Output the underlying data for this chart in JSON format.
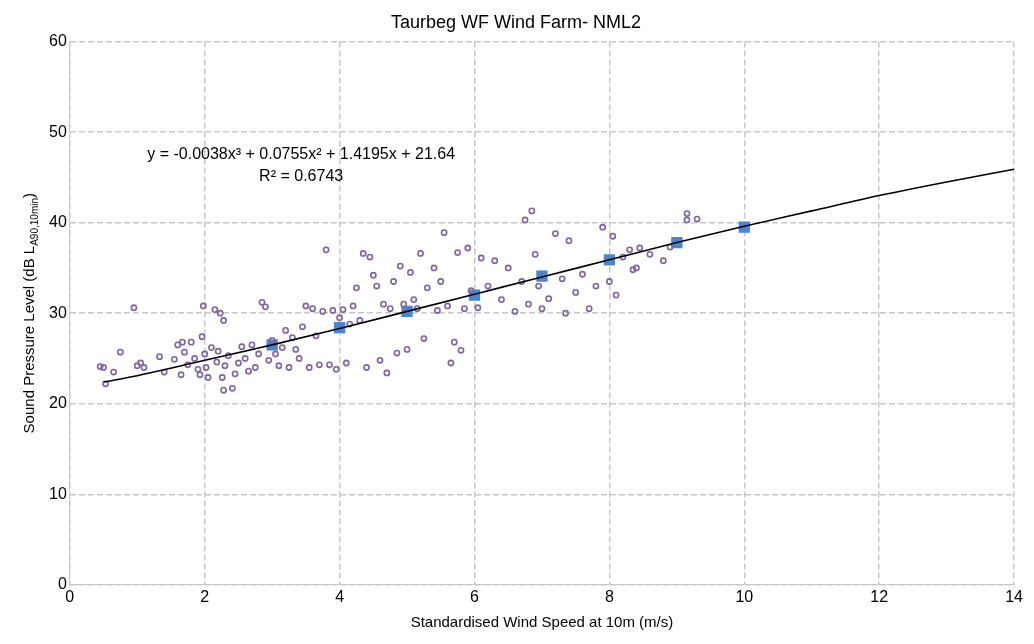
{
  "chart_data": {
    "type": "scatter",
    "title": "Taurbeg WF Wind Farm- NML2",
    "xlabel": "Standardised Wind Speed at 10m (m/s)",
    "ylabel": "Sound Pressure Level (dB L$_{A90,10min}$)",
    "xlim": [
      0,
      14
    ],
    "xticks": [
      0,
      2,
      4,
      6,
      8,
      10,
      12,
      14
    ],
    "ylim": [
      0,
      60
    ],
    "yticks": [
      0,
      10,
      20,
      30,
      40,
      50,
      60
    ],
    "grid": true,
    "legend": false,
    "annotations": [
      "y = -0.0038x³ + 0.0755x² + 1.4195x + 21.64",
      "R² = 0.6743"
    ],
    "series": [
      {
        "color": "#8064a2",
        "marker": "circle",
        "x": [
          0.45,
          0.5,
          0.53,
          0.65,
          0.75,
          0.95,
          1.0,
          1.05,
          1.1,
          1.33,
          1.4,
          1.55,
          1.6,
          1.65,
          1.67,
          1.7,
          1.75,
          1.8,
          1.85,
          1.9,
          1.93,
          1.96,
          1.98,
          2.0,
          2.02,
          2.05,
          2.1,
          2.15,
          2.18,
          2.2,
          2.23,
          2.26,
          2.28,
          2.28,
          2.3,
          2.35,
          2.41,
          2.45,
          2.5,
          2.55,
          2.6,
          2.65,
          2.7,
          2.75,
          2.8,
          2.85,
          2.9,
          2.95,
          3.0,
          3.05,
          3.1,
          3.15,
          3.2,
          3.25,
          3.3,
          3.35,
          3.4,
          3.45,
          3.5,
          3.55,
          3.6,
          3.65,
          3.7,
          3.75,
          3.8,
          3.85,
          3.9,
          3.95,
          4.0,
          4.05,
          4.1,
          4.15,
          4.2,
          4.25,
          4.3,
          4.35,
          4.4,
          4.45,
          4.5,
          4.55,
          4.6,
          4.65,
          4.7,
          4.75,
          4.8,
          4.85,
          4.9,
          4.95,
          5.0,
          5.05,
          5.1,
          5.15,
          5.2,
          5.25,
          5.3,
          5.4,
          5.45,
          5.5,
          5.55,
          5.6,
          5.65,
          5.7,
          5.75,
          5.8,
          5.85,
          5.9,
          5.95,
          6.05,
          6.1,
          6.2,
          6.3,
          6.4,
          6.5,
          6.6,
          6.7,
          6.75,
          6.8,
          6.85,
          6.9,
          6.95,
          7.0,
          7.1,
          7.2,
          7.3,
          7.35,
          7.4,
          7.5,
          7.6,
          7.7,
          7.8,
          7.9,
          8.0,
          8.05,
          8.1,
          8.2,
          8.3,
          8.35,
          8.4,
          8.45,
          8.6,
          8.8,
          8.9,
          9.15,
          9.15,
          9.3
        ],
        "values": [
          24.1,
          24.0,
          22.2,
          23.5,
          25.7,
          30.6,
          24.2,
          24.5,
          24.0,
          25.2,
          23.5,
          24.9,
          26.5,
          23.2,
          26.8,
          25.7,
          24.3,
          26.8,
          25.0,
          23.8,
          23.2,
          27.4,
          30.8,
          25.5,
          24.0,
          22.9,
          26.2,
          30.4,
          24.6,
          25.8,
          30.0,
          22.9,
          29.2,
          21.5,
          24.2,
          25.3,
          21.7,
          23.3,
          24.5,
          26.3,
          25.0,
          23.6,
          26.5,
          24.0,
          25.5,
          31.2,
          30.7,
          24.8,
          27.0,
          25.5,
          24.2,
          26.2,
          28.1,
          24.0,
          27.3,
          26.0,
          25.0,
          28.5,
          30.8,
          24.0,
          30.5,
          27.5,
          24.3,
          30.2,
          37.0,
          24.3,
          30.3,
          23.8,
          29.5,
          30.4,
          24.5,
          28.8,
          30.8,
          32.8,
          29.2,
          36.6,
          24.0,
          36.2,
          34.2,
          33.0,
          24.8,
          31.0,
          23.4,
          30.5,
          33.5,
          25.6,
          35.2,
          31.0,
          26.0,
          34.5,
          31.5,
          30.5,
          36.6,
          27.2,
          32.8,
          35.0,
          30.3,
          33.5,
          38.9,
          30.8,
          24.5,
          26.8,
          36.7,
          25.9,
          30.5,
          37.2,
          32.5,
          30.6,
          36.1,
          33.0,
          35.8,
          31.5,
          35.0,
          30.2,
          33.5,
          40.3,
          31.0,
          41.3,
          36.5,
          33.0,
          30.5,
          31.6,
          38.8,
          33.8,
          30.0,
          38.0,
          32.3,
          34.3,
          30.5,
          33.0,
          39.5,
          33.5,
          38.5,
          32.0,
          36.2,
          37.0,
          34.8,
          35.0,
          37.2,
          36.5,
          35.8,
          37.3,
          41.0,
          40.3,
          40.4
        ]
      },
      {
        "color": "#4a86d0",
        "marker": "square",
        "x": [
          3,
          4,
          5,
          6,
          7,
          8,
          9,
          10
        ],
        "values": [
          26.5,
          28.4,
          30.2,
          32.0,
          34.1,
          35.9,
          37.8,
          39.5
        ]
      },
      {
        "type": "line",
        "color": "#000000",
        "marker": "none",
        "line_style": "solid",
        "x": [
          0.5,
          1,
          2,
          3,
          4,
          5,
          6,
          7,
          8,
          9,
          10,
          11,
          12,
          13,
          14
        ],
        "values": [
          22.4,
          23.1,
          24.8,
          26.5,
          28.3,
          30.2,
          32.1,
          34.0,
          35.9,
          37.8,
          39.6,
          41.3,
          43.0,
          44.5,
          45.9
        ]
      }
    ]
  }
}
